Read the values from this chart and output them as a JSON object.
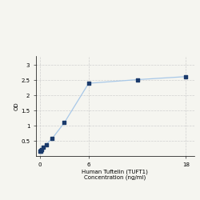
{
  "x": [
    0,
    0.047,
    0.094,
    0.188,
    0.375,
    0.75,
    1.5,
    3,
    6,
    12,
    18
  ],
  "y": [
    0.148,
    0.16,
    0.175,
    0.22,
    0.28,
    0.38,
    0.58,
    1.1,
    2.4,
    2.52,
    2.62
  ],
  "line_color": "#a8c8e8",
  "marker_color": "#1a3a6b",
  "marker_size": 3.5,
  "line_width": 0.9,
  "xlabel_line1": "Human Tuftelin (TUFT1)",
  "xlabel_line2": "Concentration (ng/ml)",
  "ylabel": "OD",
  "xlim": [
    -0.5,
    19
  ],
  "ylim": [
    0.0,
    3.3
  ],
  "yticks": [
    0.5,
    1.0,
    1.5,
    2.0,
    2.5,
    3.0
  ],
  "ytick_labels": [
    "0.5",
    "1",
    "1.5",
    "2",
    "2.5",
    "3"
  ],
  "xticks": [
    0,
    6,
    18
  ],
  "xtick_labels": [
    "0",
    "6",
    "18"
  ],
  "grid_color": "#d0d0d0",
  "grid_style": "--",
  "bg_color": "#f5f5f0",
  "tick_fontsize": 5,
  "label_fontsize": 5
}
